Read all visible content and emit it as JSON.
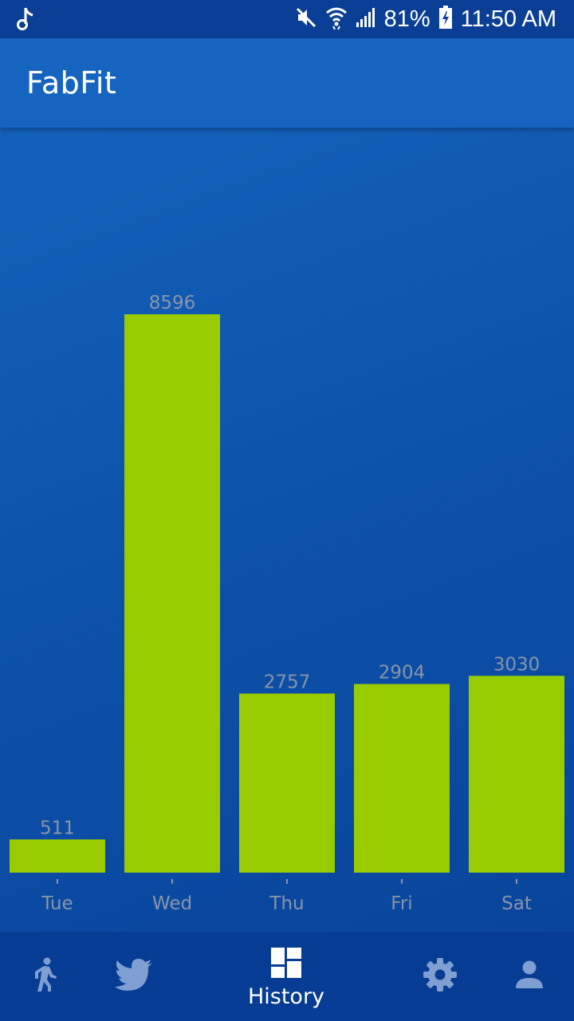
{
  "status_bar": {
    "battery": "81%",
    "time": "11:50 AM",
    "icons": [
      "music-note-icon",
      "mute-icon",
      "wifi-icon",
      "signal-icon",
      "battery-charging-icon"
    ]
  },
  "app_bar": {
    "title": "FabFit"
  },
  "chart_data": {
    "type": "bar",
    "categories": [
      "Tue",
      "Wed",
      "Thu",
      "Fri",
      "Sat"
    ],
    "values": [
      511,
      8596,
      2757,
      2904,
      3030
    ],
    "bar_color": "#99cc00",
    "label_color": "#8a94a8",
    "grid": false
  },
  "bottom_nav": {
    "items": [
      {
        "icon": "walk-icon",
        "label": ""
      },
      {
        "icon": "twitter-icon",
        "label": ""
      },
      {
        "icon": "dashboard-icon",
        "label": "History",
        "active": true
      },
      {
        "icon": "gear-icon",
        "label": ""
      },
      {
        "icon": "person-icon",
        "label": ""
      }
    ]
  }
}
